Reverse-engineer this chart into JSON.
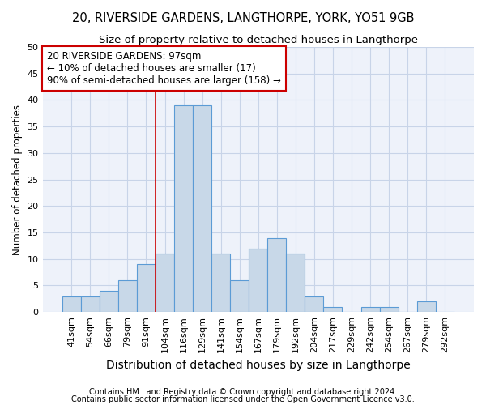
{
  "title1": "20, RIVERSIDE GARDENS, LANGTHORPE, YORK, YO51 9GB",
  "title2": "Size of property relative to detached houses in Langthorpe",
  "xlabel": "Distribution of detached houses by size in Langthorpe",
  "ylabel": "Number of detached properties",
  "footnote1": "Contains HM Land Registry data © Crown copyright and database right 2024.",
  "footnote2": "Contains public sector information licensed under the Open Government Licence v3.0.",
  "categories": [
    "41sqm",
    "54sqm",
    "66sqm",
    "79sqm",
    "91sqm",
    "104sqm",
    "116sqm",
    "129sqm",
    "141sqm",
    "154sqm",
    "167sqm",
    "179sqm",
    "192sqm",
    "204sqm",
    "217sqm",
    "229sqm",
    "242sqm",
    "254sqm",
    "267sqm",
    "279sqm",
    "292sqm"
  ],
  "values": [
    3,
    3,
    4,
    6,
    9,
    11,
    39,
    39,
    11,
    6,
    12,
    14,
    11,
    3,
    1,
    0,
    1,
    1,
    0,
    2,
    0
  ],
  "bar_color": "#c8d8e8",
  "bar_edge_color": "#5b9bd5",
  "vline_x": 4.5,
  "vline_color": "#cc0000",
  "annotation_line1": "20 RIVERSIDE GARDENS: 97sqm",
  "annotation_line2": "← 10% of detached houses are smaller (17)",
  "annotation_line3": "90% of semi-detached houses are larger (158) →",
  "annotation_box_color": "#cc0000",
  "ylim": [
    0,
    50
  ],
  "yticks": [
    0,
    5,
    10,
    15,
    20,
    25,
    30,
    35,
    40,
    45,
    50
  ],
  "grid_color": "#c8d4e8",
  "background_color": "#eef2fa",
  "title1_fontsize": 10.5,
  "title2_fontsize": 9.5,
  "xlabel_fontsize": 10,
  "ylabel_fontsize": 8.5,
  "annotation_fontsize": 8.5,
  "tick_fontsize": 8,
  "footnote_fontsize": 7
}
